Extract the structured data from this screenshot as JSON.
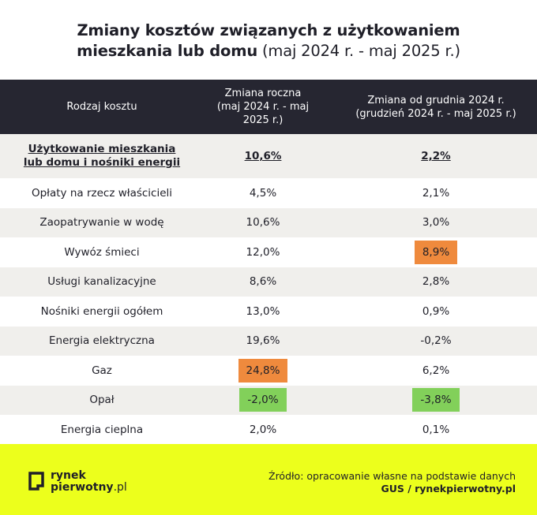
{
  "title": {
    "line1": "Zmiany kosztów związanych z użytkowaniem",
    "line2_bold": "mieszkania lub domu",
    "line2_light": "(maj 2024 r. - maj 2025 r.)"
  },
  "header": {
    "col1": "Rodzaj kosztu",
    "col2_line1": "Zmiana roczna",
    "col2_line2": "(maj 2024 r. - maj 2025 r.)",
    "col3_line1": "Zmiana od grudnia 2024 r.",
    "col3_line2": "(grudzień 2024 r. - maj 2025 r.)"
  },
  "rows": [
    {
      "name_line1": "Użytkowanie mieszkania",
      "name_line2": "lub domu i nośniki energii",
      "annual": "10,6%",
      "since_dec": "2,2%"
    },
    {
      "name": "Opłaty na rzecz właścicieli",
      "annual": "4,5%",
      "since_dec": "2,1%"
    },
    {
      "name": "Zaopatrywanie w wodę",
      "annual": "10,6%",
      "since_dec": "3,0%"
    },
    {
      "name": "Wywóz śmieci",
      "annual": "12,0%",
      "since_dec": "8,9%"
    },
    {
      "name": "Usługi kanalizacyjne",
      "annual": "8,6%",
      "since_dec": "2,8%"
    },
    {
      "name": "Nośniki energii ogółem",
      "annual": "13,0%",
      "since_dec": "0,9%"
    },
    {
      "name": "Energia elektryczna",
      "annual": "19,6%",
      "since_dec": "-0,2%"
    },
    {
      "name": "Gaz",
      "annual": "24,8%",
      "since_dec": "6,2%"
    },
    {
      "name": "Opał",
      "annual": "-2,0%",
      "since_dec": "-3,8%"
    },
    {
      "name": "Energia cieplna",
      "annual": "2,0%",
      "since_dec": "0,1%"
    }
  ],
  "highlights": {
    "orange": "#ef8a3d",
    "green": "#82d05a"
  },
  "footer": {
    "logo_line1": "rynek",
    "logo_line2_bold": "pierwotny",
    "logo_line2_rest": ".pl",
    "source_line1": "Źródło: opracowanie własne na podstawie danych",
    "source_line2": "GUS / rynekpierwotny.pl"
  },
  "colors": {
    "header_bg": "#262631",
    "footer_bg": "#ecff1c",
    "alt_row": "#f0efec"
  }
}
